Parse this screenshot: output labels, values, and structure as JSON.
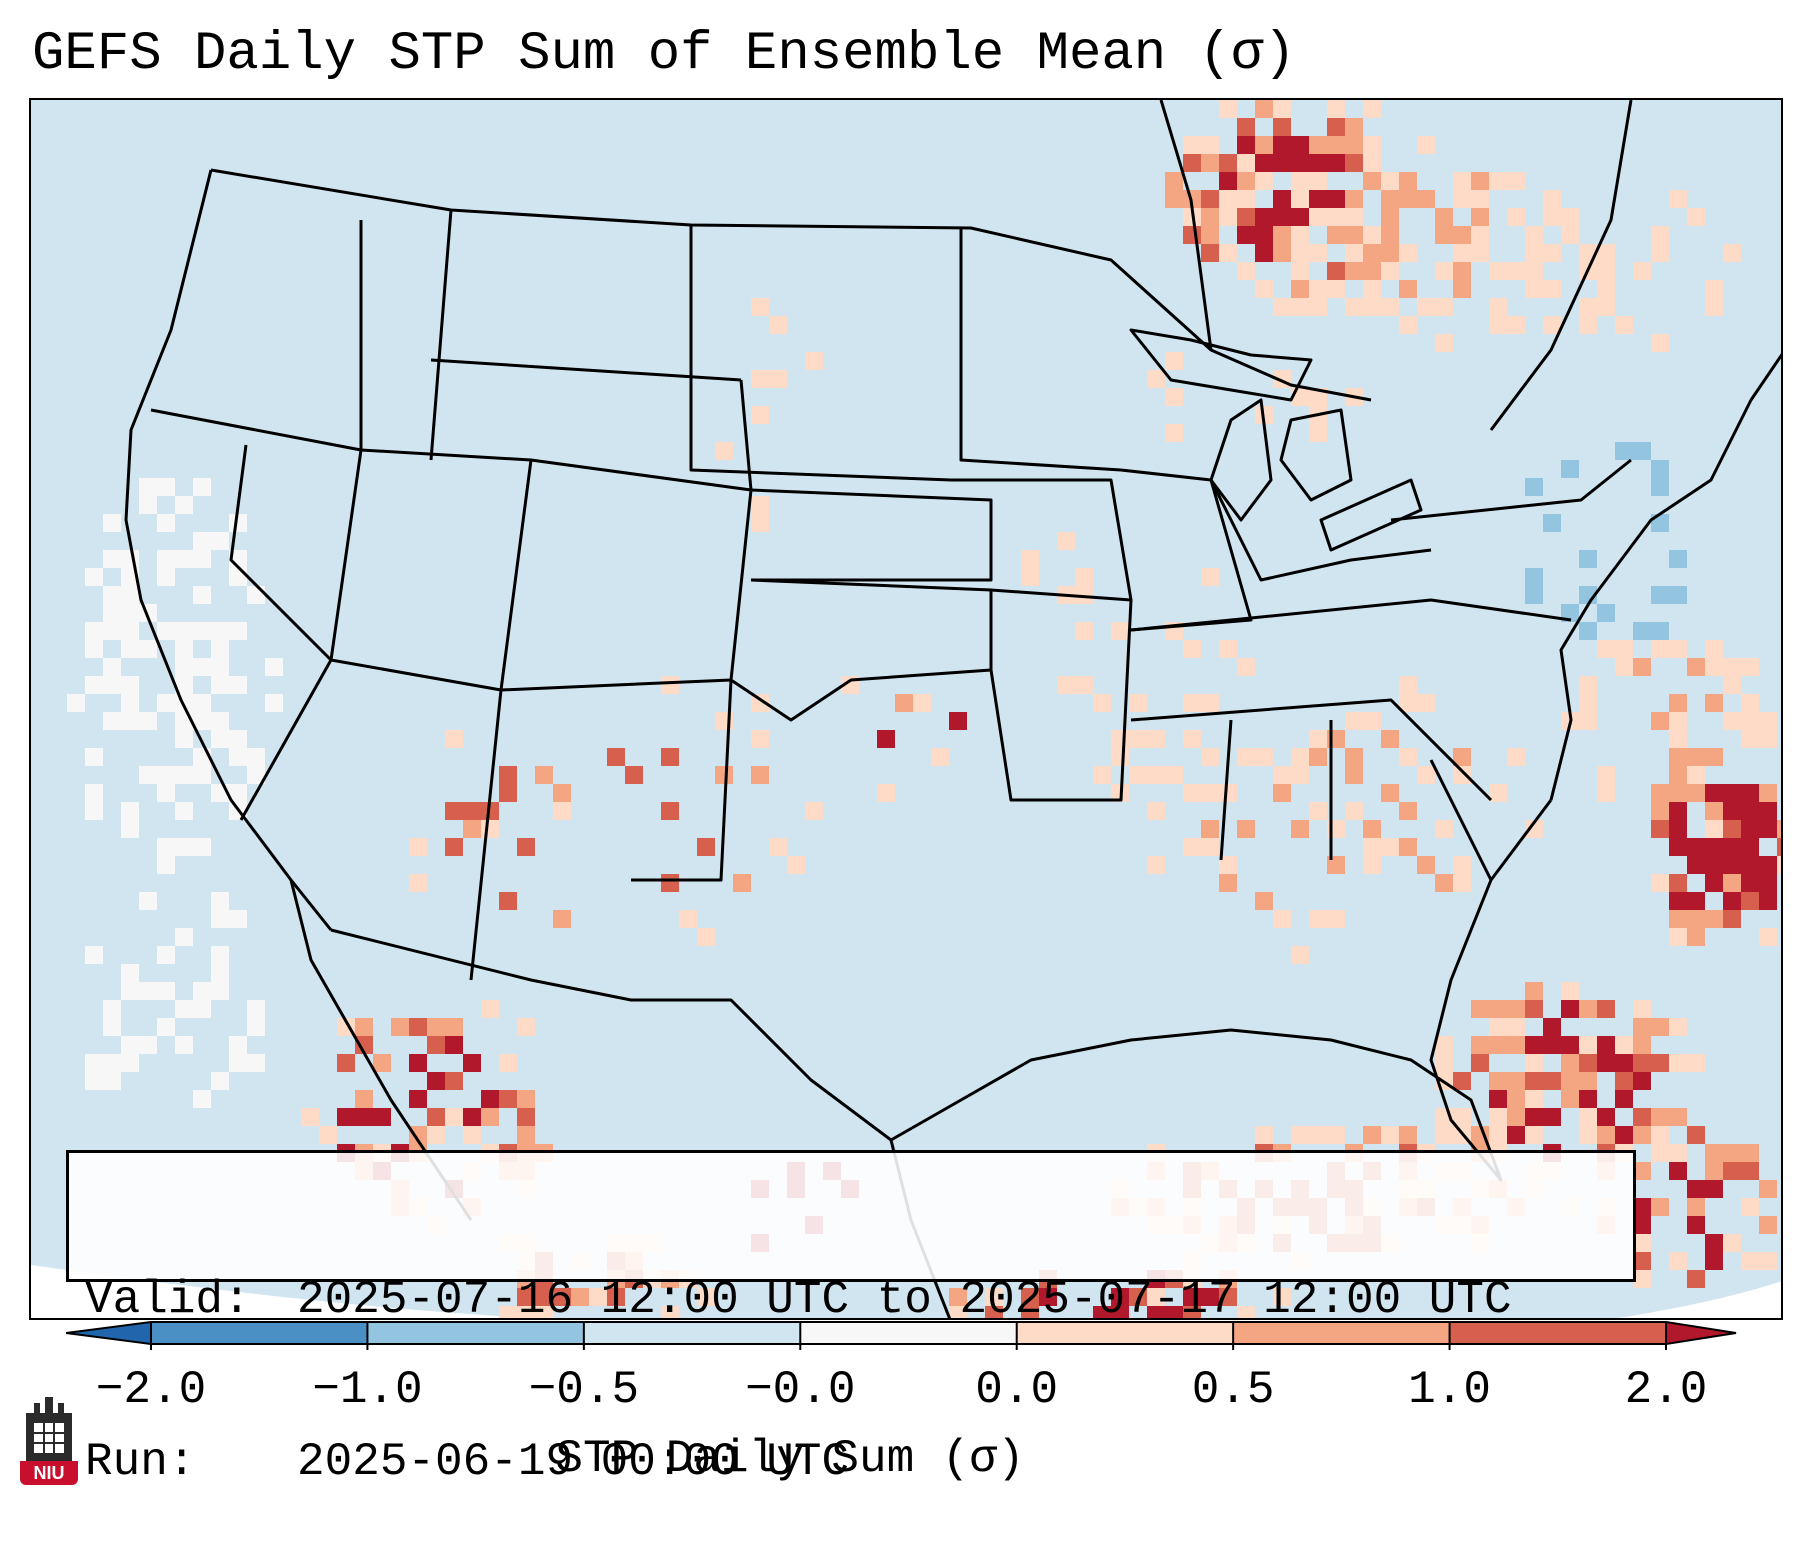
{
  "title": "GEFS Daily STP Sum of Ensemble Mean (σ)",
  "info": {
    "valid_label": "Valid:",
    "valid_value": "2025-07-16 12:00 UTC to 2025-07-17 12:00 UTC",
    "run_label": "Run:",
    "run_value": "2025-06-19 00:00 UTC"
  },
  "colorbar": {
    "ticks": [
      "−2.0",
      "−1.0",
      "−0.5",
      "−0.0",
      "0.0",
      "0.5",
      "1.0",
      "2.0"
    ],
    "label": "STP Daily Sum (σ)",
    "bin_colors": [
      "#4a90c4",
      "#93c4e0",
      "#d1e5f0",
      "#f7f7f7",
      "#fddbc7",
      "#f4a582",
      "#d6604d",
      "#b2182b"
    ],
    "extend_low_color": "#2166ac",
    "extend_high_color": "#b2182b"
  },
  "map": {
    "region": "CONUS",
    "projection": "Lambert Conformal",
    "background_color": "#d1e5f0",
    "hotspots": [
      {
        "region": "Northern Ontario",
        "level": "high"
      },
      {
        "region": "Western Atlantic off Carolinas",
        "level": "high"
      },
      {
        "region": "Florida Peninsula",
        "level": "high"
      },
      {
        "region": "Gulf of California",
        "level": "high"
      },
      {
        "region": "Northeast US",
        "level": "negative"
      }
    ]
  },
  "logo": {
    "text": "NIU"
  }
}
